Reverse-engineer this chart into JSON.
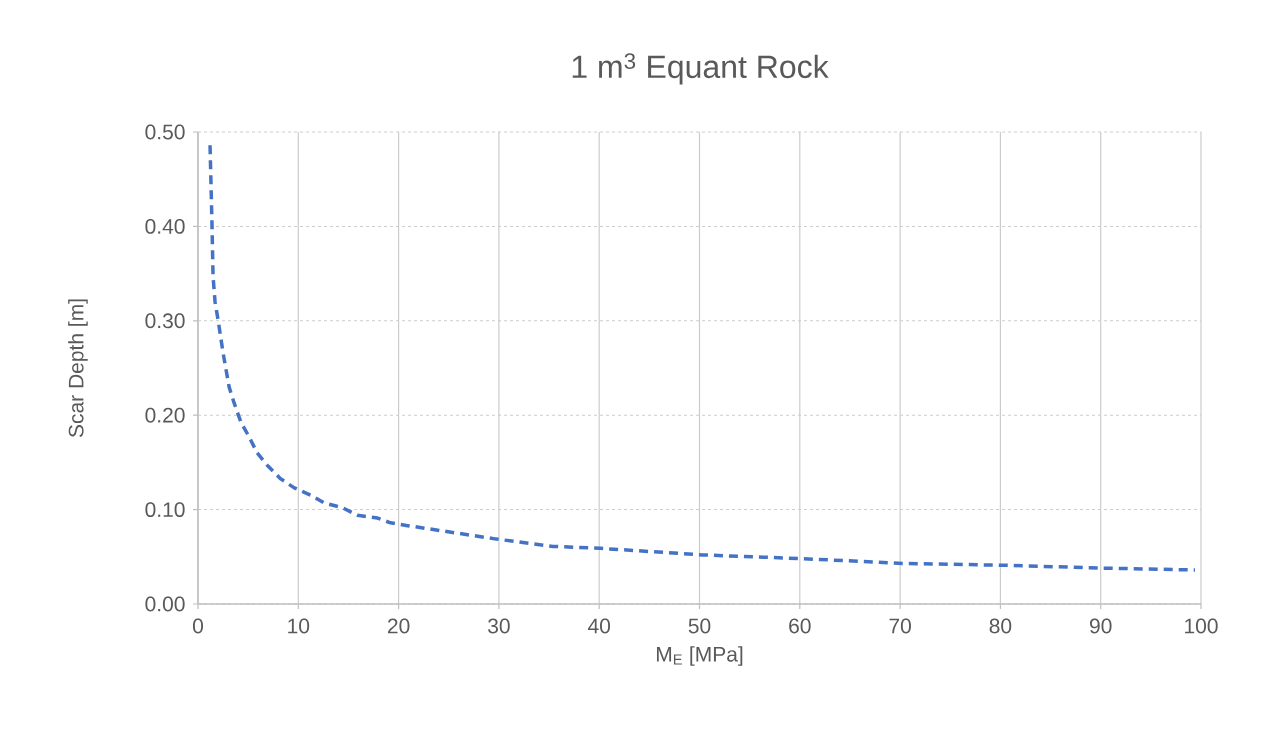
{
  "chart_data": {
    "type": "line",
    "title": "1 m$^{3}$ Equant Rock",
    "xlabel": "M$_{E}$ [MPa]",
    "ylabel": "Scar Depth [m]",
    "x": [
      1.2,
      1.4,
      1.5,
      1.7,
      2.0,
      2.5,
      3.1,
      3.6,
      4.3,
      5.1,
      5.9,
      6.9,
      8.2,
      9.6,
      11.3,
      12.6,
      14.4,
      15.9,
      17.9,
      19.2,
      20.9,
      29.6,
      35.4,
      40.1,
      50.3,
      60.3,
      70.3,
      80.5,
      90.4,
      99.4
    ],
    "series": [
      {
        "color": "#4472c4",
        "values": [
          0.486,
          0.4,
          0.347,
          0.32,
          0.301,
          0.266,
          0.23,
          0.213,
          0.192,
          0.177,
          0.16,
          0.147,
          0.133,
          0.123,
          0.115,
          0.107,
          0.102,
          0.094,
          0.091,
          0.086,
          0.083,
          0.069,
          0.061,
          0.059,
          0.052,
          0.048,
          0.043,
          0.041,
          0.038,
          0.036
        ]
      }
    ],
    "xlim": [
      0,
      100
    ],
    "ylim": [
      0,
      0.5
    ],
    "xticks": [
      0,
      10,
      20,
      30,
      40,
      50,
      60,
      70,
      80,
      90,
      100
    ],
    "yticks": [
      {
        "value": 0,
        "label": "0.00"
      },
      {
        "value": 0.1,
        "label": "0.10"
      },
      {
        "value": 0.2,
        "label": "0.20"
      },
      {
        "value": 0.3,
        "label": "0.30"
      },
      {
        "value": 0.4,
        "label": "0.40"
      },
      {
        "value": 0.5,
        "label": "0.50"
      }
    ],
    "grid": true,
    "legend": false,
    "marker": "none",
    "line_style": "dashed"
  }
}
